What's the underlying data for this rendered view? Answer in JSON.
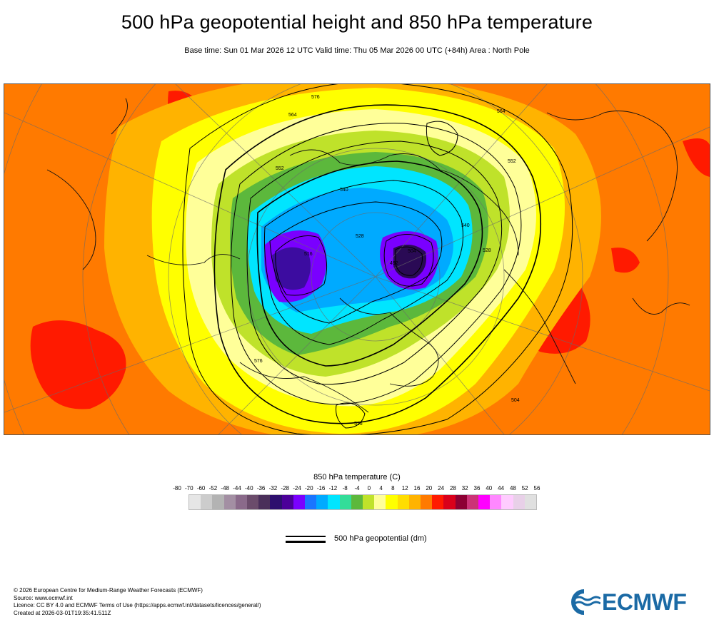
{
  "title": "500 hPa geopotential height and 850 hPa temperature",
  "subtitle": "Base time: Sun 01 Mar 2026 12 UTC Valid time: Thu 05 Mar 2026 00 UTC (+84h) Area : North Pole",
  "map": {
    "contour_labels": [
      "576",
      "564",
      "552",
      "540",
      "528",
      "516",
      "504",
      "492",
      "576",
      "564",
      "552",
      "540",
      "528",
      "516",
      "504"
    ],
    "colors": {
      "warm": "#ff7a00",
      "hot": "#ff1a00",
      "yellow_orange": "#ffb300",
      "yellow": "#ffff00",
      "pale_yellow": "#ffff99",
      "lime": "#bfe22a",
      "green": "#5cb83c",
      "teal": "#33dd99",
      "cyan": "#00e5ff",
      "sky": "#00aaff",
      "blue": "#1f6fff",
      "violet": "#7a00ff",
      "indigo": "#3c0ca0",
      "deep": "#2a0a55"
    }
  },
  "legend": {
    "title": "850 hPa temperature (C)",
    "ticks": [
      "-80",
      "-70",
      "-60",
      "-52",
      "-48",
      "-44",
      "-40",
      "-36",
      "-32",
      "-28",
      "-24",
      "-20",
      "-16",
      "-12",
      "-8",
      "-4",
      "0",
      "4",
      "8",
      "12",
      "16",
      "20",
      "24",
      "28",
      "32",
      "36",
      "40",
      "44",
      "48",
      "52",
      "56"
    ],
    "colors": [
      "#e6e6e6",
      "#cccccc",
      "#b3b3b3",
      "#a38fa3",
      "#8a6a8a",
      "#6b4c6b",
      "#4a2f5a",
      "#2d0f6e",
      "#4b0099",
      "#7a00ff",
      "#1a75ff",
      "#00aaff",
      "#00e5ff",
      "#33dd99",
      "#5cb83c",
      "#bfe22a",
      "#ffff99",
      "#ffff00",
      "#ffdd00",
      "#ffb300",
      "#ff7a00",
      "#ff1a00",
      "#d9001a",
      "#8c0033",
      "#cc3377",
      "#ff00ff",
      "#ff88ff",
      "#ffccff",
      "#e8d0e8",
      "#e0e0e0"
    ],
    "contour_label": "500 hPa geopotential (dm)"
  },
  "footer": {
    "line1": "© 2026 European Centre for Medium-Range Weather Forecasts (ECMWF)",
    "line2": "Source: www.ecmwf.int",
    "line3": "Licence: CC BY 4.0 and ECMWF Terms of Use (https://apps.ecmwf.int/datasets/licences/general/)",
    "line4": "Created at 2026-03-01T19:35:41.511Z"
  },
  "logo": {
    "text": "ECMWF",
    "color": "#1b6aa5"
  }
}
